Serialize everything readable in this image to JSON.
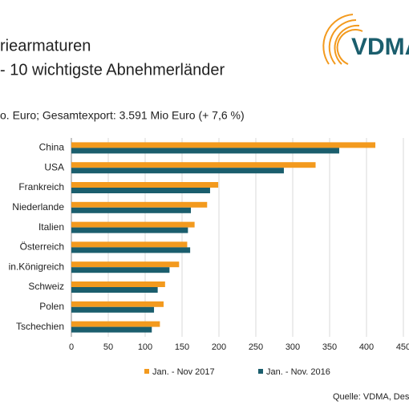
{
  "logo_text": "VDMA",
  "chart_data": {
    "type": "hbar",
    "title": "riearmaturen",
    "subtitle": "- 10 wichtigste Abnehmerländer",
    "note": "o. Euro; Gesamtexport: 3.591 Mio Euro (+ 7,6 %)",
    "source": "Quelle: VDMA, Dest",
    "categories": [
      "China",
      "USA",
      "Frankreich",
      "Niederlande",
      "Italien",
      "Österreich",
      "in.Königreich",
      "Schweiz",
      "Polen",
      "Tschechien"
    ],
    "series": [
      {
        "name": "Jan. - Nov 2017",
        "color": "#f39a1e",
        "values": [
          412,
          331,
          199,
          184,
          167,
          157,
          146,
          127,
          125,
          120
        ]
      },
      {
        "name": "Jan. - Nov. 2016",
        "color": "#1b5e6d",
        "values": [
          363,
          288,
          188,
          162,
          158,
          161,
          133,
          117,
          112,
          109
        ]
      }
    ],
    "xlim": [
      0,
      450
    ],
    "xticks": [
      0,
      50,
      100,
      150,
      200,
      250,
      300,
      350,
      400,
      450
    ],
    "grid": true
  }
}
